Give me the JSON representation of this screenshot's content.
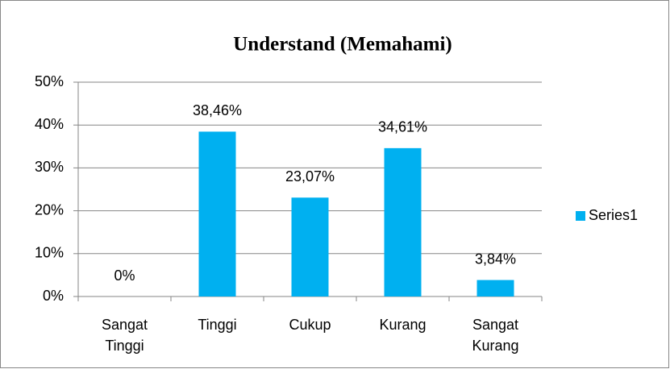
{
  "chart_data": {
    "type": "bar",
    "title": "Understand (Memahami)",
    "categories": [
      "Sangat Tinggi",
      "Tinggi",
      "Cukup",
      "Kurang",
      "Sangat Kurang"
    ],
    "series": [
      {
        "name": "Series1",
        "color": "#00b0f0",
        "values": [
          0,
          38.46,
          23.07,
          34.61,
          3.84
        ],
        "value_labels": [
          "0%",
          "38,46%",
          "23,07%",
          "34,61%",
          "3,84%"
        ]
      }
    ],
    "ylim": [
      0,
      50
    ],
    "yticks": [
      {
        "value": 0,
        "label": "0%"
      },
      {
        "value": 10,
        "label": "10%"
      },
      {
        "value": 20,
        "label": "20%"
      },
      {
        "value": 30,
        "label": "30%"
      },
      {
        "value": 40,
        "label": "40%"
      },
      {
        "value": 50,
        "label": "50%"
      }
    ],
    "grid": true,
    "legend": "right"
  }
}
